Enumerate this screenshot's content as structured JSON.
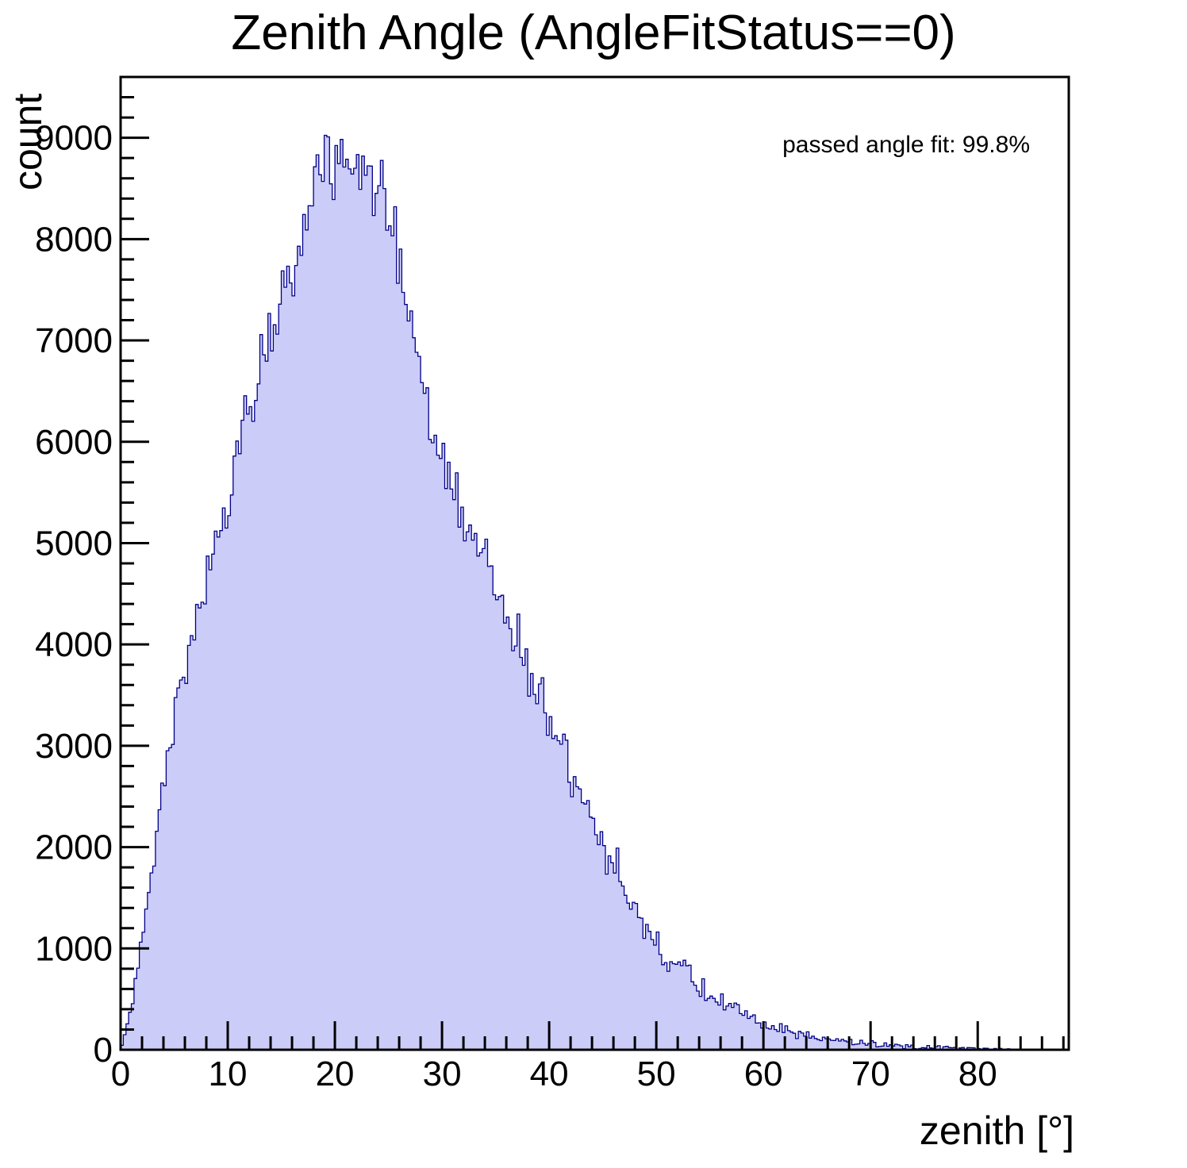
{
  "title": "Zenith Angle (AngleFitStatus==0)",
  "annotation": "passed angle fit: 99.8%",
  "axes": {
    "x_label": "zenith [°]",
    "y_label": "count",
    "x_tick_values": [
      0,
      10,
      20,
      30,
      40,
      50,
      60,
      70,
      80
    ],
    "y_tick_values": [
      0,
      1000,
      2000,
      3000,
      4000,
      5000,
      6000,
      7000,
      8000,
      9000
    ],
    "x_minor_step": 2,
    "y_minor_step": 200
  },
  "colors": {
    "fill": "#ccccf8",
    "line": "#000088",
    "frame": "#000000",
    "text": "#000000",
    "background": "#ffffff"
  },
  "chart_data": {
    "type": "bar",
    "style": "step-histogram-filled",
    "title": "Zenith Angle (AngleFitStatus==0)",
    "xlabel": "zenith [°]",
    "ylabel": "count",
    "annotation": "passed angle fit: 99.8%",
    "xlim": [
      0,
      88.5
    ],
    "ylim": [
      0,
      9600
    ],
    "grid": false,
    "legend": "none",
    "bin_width_deg": 0.25,
    "peak_count_approx": 9100,
    "peak_position_deg_approx": 19,
    "envelope_x_deg": [
      0,
      1,
      2,
      3,
      4,
      5,
      6,
      7,
      8,
      9,
      10,
      11,
      12,
      13,
      14,
      15,
      16,
      17,
      18,
      19,
      20,
      21,
      22,
      23,
      24,
      25,
      26,
      27,
      28,
      29,
      30,
      31,
      32,
      33,
      34,
      35,
      36,
      37,
      38,
      39,
      40,
      41,
      42,
      43,
      44,
      45,
      46,
      47,
      48,
      49,
      50,
      51,
      52,
      53,
      54,
      55,
      56,
      57,
      58,
      59,
      60,
      61,
      62,
      63,
      64,
      65,
      66,
      67,
      68,
      69,
      70,
      71,
      72,
      73,
      74,
      75,
      76,
      77,
      78,
      79,
      80,
      81,
      82,
      83,
      84,
      85,
      86,
      87,
      88
    ],
    "envelope_counts": [
      10,
      450,
      1100,
      1850,
      2650,
      3200,
      3700,
      4150,
      4550,
      5000,
      5400,
      5800,
      6250,
      6650,
      7000,
      7350,
      7700,
      8050,
      8400,
      8650,
      8750,
      8800,
      8750,
      8650,
      8500,
      8250,
      7850,
      7300,
      6700,
      6050,
      5850,
      5600,
      5350,
      5100,
      4850,
      4600,
      4350,
      4050,
      3750,
      3500,
      3300,
      3050,
      2750,
      2500,
      2280,
      2080,
      1850,
      1570,
      1330,
      1160,
      1035,
      930,
      840,
      745,
      650,
      565,
      485,
      420,
      345,
      285,
      240,
      210,
      180,
      155,
      135,
      115,
      100,
      88,
      76,
      66,
      56,
      48,
      42,
      36,
      31,
      27,
      23,
      20,
      17,
      14,
      12,
      10,
      8,
      6,
      5,
      4,
      3,
      2,
      1
    ],
    "noise_sigma_scale": 2.2,
    "noise_seed": 20240917
  }
}
